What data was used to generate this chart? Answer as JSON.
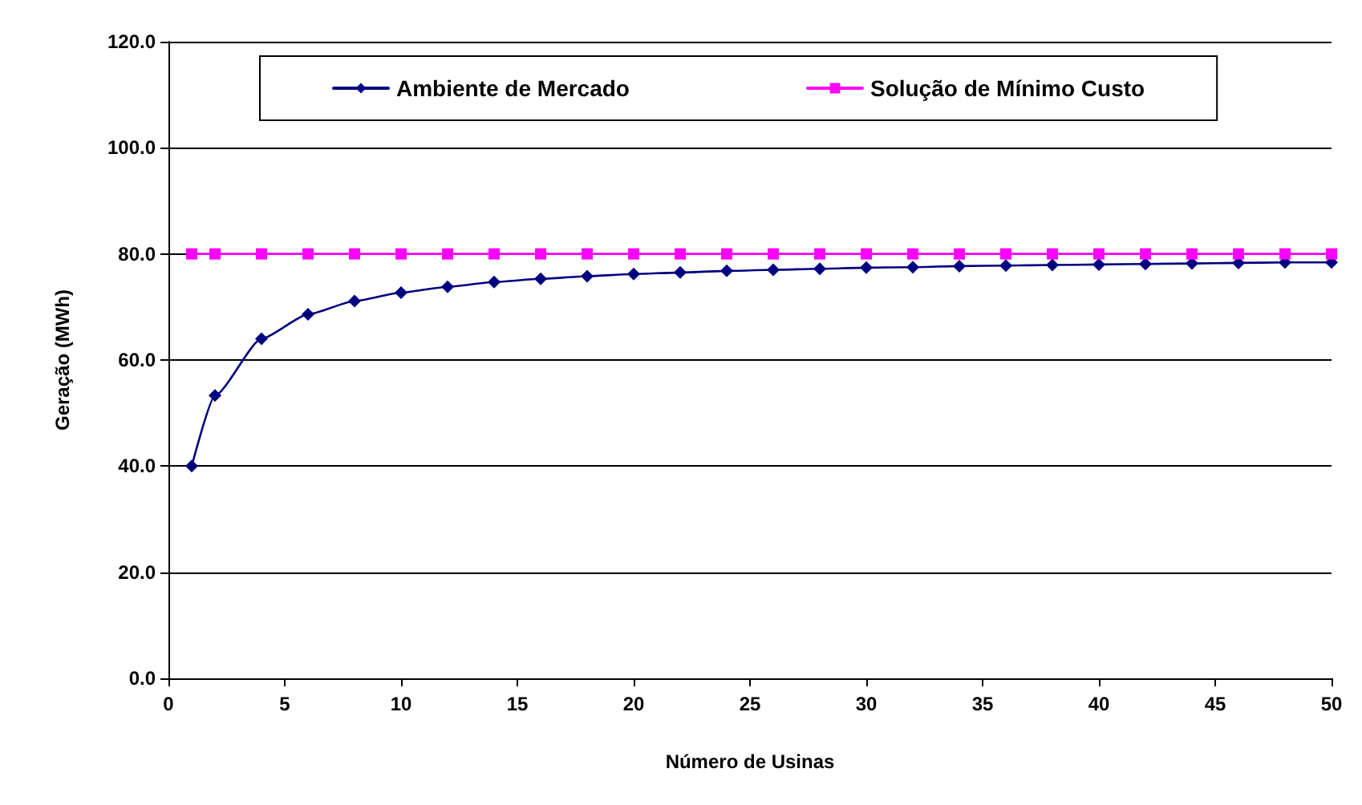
{
  "chart_data": {
    "type": "line",
    "xlabel": "Número de Usinas",
    "ylabel": "Geração (MWh)",
    "x": [
      1,
      2,
      4,
      6,
      8,
      10,
      12,
      14,
      16,
      18,
      20,
      22,
      24,
      26,
      28,
      30,
      32,
      34,
      36,
      38,
      40,
      42,
      44,
      46,
      48,
      50
    ],
    "series": [
      {
        "name": "Ambiente de Mercado",
        "color": "#000080",
        "marker": "diamond",
        "values": [
          40,
          53.3,
          64,
          68.6,
          71.1,
          72.7,
          73.8,
          74.7,
          75.3,
          75.8,
          76.2,
          76.5,
          76.8,
          77,
          77.2,
          77.4,
          77.5,
          77.7,
          77.8,
          77.9,
          78,
          78.1,
          78.2,
          78.3,
          78.4,
          78.4
        ]
      },
      {
        "name": "Solução de Mínimo Custo",
        "color": "#ff00ff",
        "marker": "square",
        "values": [
          80,
          80,
          80,
          80,
          80,
          80,
          80,
          80,
          80,
          80,
          80,
          80,
          80,
          80,
          80,
          80,
          80,
          80,
          80,
          80,
          80,
          80,
          80,
          80,
          80,
          80
        ]
      }
    ],
    "xlim": [
      0,
      50
    ],
    "xticks": [
      0,
      5,
      10,
      15,
      20,
      25,
      30,
      35,
      40,
      45,
      50
    ],
    "ylim": [
      0,
      120
    ],
    "yticks": [
      {
        "value": 0,
        "label": "0.0"
      },
      {
        "value": 20,
        "label": "20.0"
      },
      {
        "value": 40,
        "label": "40.0"
      },
      {
        "value": 60,
        "label": "60.0"
      },
      {
        "value": 80,
        "label": "80.0"
      },
      {
        "value": 100,
        "label": "100.0"
      },
      {
        "value": 120,
        "label": "120.0"
      }
    ],
    "grid": "y",
    "legend": "top"
  }
}
